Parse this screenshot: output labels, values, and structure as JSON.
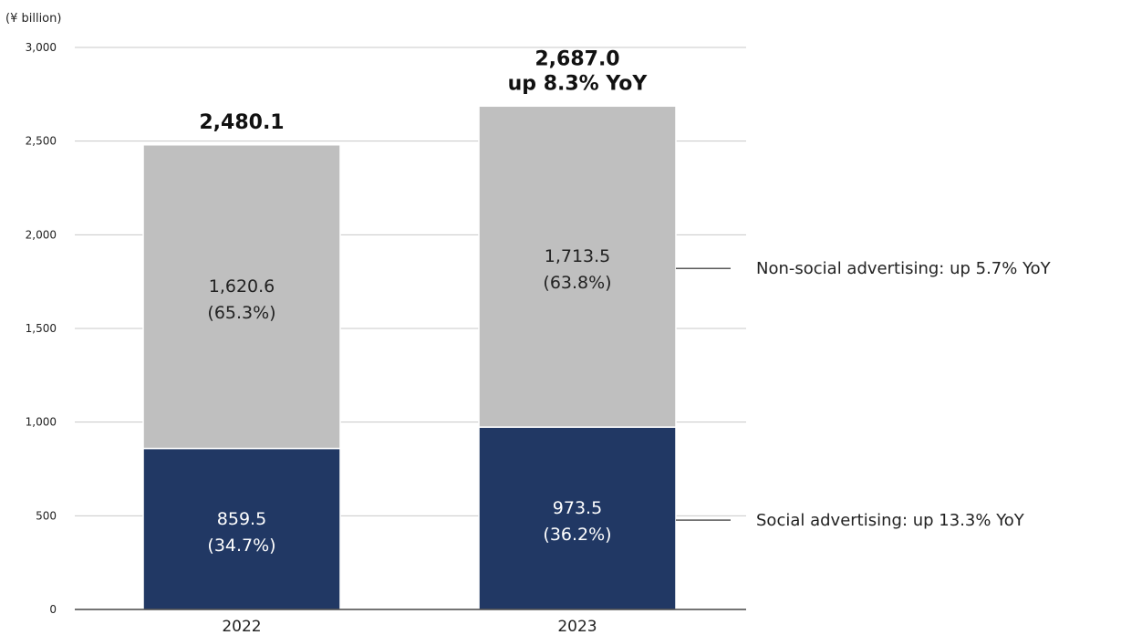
{
  "chart_data": {
    "type": "bar",
    "stacked": true,
    "unit_label": "(¥ billion)",
    "categories": [
      "2022",
      "2023"
    ],
    "series": [
      {
        "name": "Social advertising: up 13.3% YoY",
        "values": [
          859.5,
          973.5
        ],
        "labels": [
          "859.5",
          "973.5"
        ],
        "shares": [
          "(34.7%)",
          "(36.2%)"
        ],
        "color": "#213864",
        "label_color": "#ffffff"
      },
      {
        "name": "Non-social advertising: up 5.7% YoY",
        "values": [
          1620.6,
          1713.5
        ],
        "labels": [
          "1,620.6",
          "1,713.5"
        ],
        "shares": [
          "(65.3%)",
          "(63.8%)"
        ],
        "color": "#bfbfbf",
        "label_color": "#222222"
      }
    ],
    "totals": [
      {
        "lines": [
          "2,480.1"
        ]
      },
      {
        "lines": [
          "2,687.0",
          "up 8.3% YoY"
        ]
      }
    ],
    "ylim": [
      0,
      3000
    ],
    "yticks": [
      "0",
      "500",
      "1,000",
      "1,500",
      "2,000",
      "2,500",
      "3,000"
    ],
    "ytick_values": [
      0,
      500,
      1000,
      1500,
      2000,
      2500,
      3000
    ],
    "grid": true,
    "legend_position": "right, aligned with segments"
  }
}
